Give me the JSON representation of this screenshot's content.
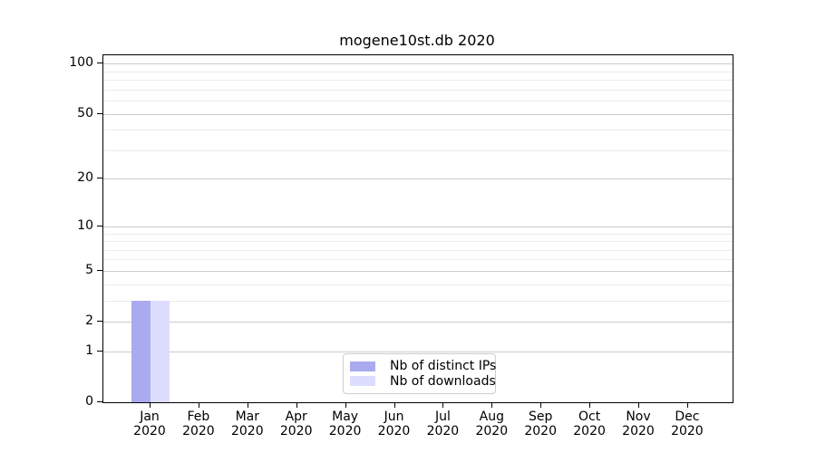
{
  "chart_data": {
    "type": "bar",
    "title": "mogene10st.db 2020",
    "x_categories": [
      "Jan",
      "Feb",
      "Mar",
      "Apr",
      "May",
      "Jun",
      "Jul",
      "Aug",
      "Sep",
      "Oct",
      "Nov",
      "Dec"
    ],
    "x_year": "2020",
    "series": [
      {
        "name": "Nb of distinct IPs",
        "color": "#aaaaee",
        "values": [
          3,
          0,
          0,
          0,
          0,
          0,
          0,
          0,
          0,
          0,
          0,
          0
        ]
      },
      {
        "name": "Nb of downloads",
        "color": "#ddddff",
        "values": [
          3,
          0,
          0,
          0,
          0,
          0,
          0,
          0,
          0,
          0,
          0,
          0
        ]
      }
    ],
    "scale": "log1p",
    "ylim": [
      0,
      112
    ],
    "y_major_ticks": [
      0,
      1,
      2,
      5,
      10,
      20,
      50,
      100
    ],
    "y_minor_gridlines": [
      3,
      4,
      6,
      7,
      8,
      9,
      30,
      40,
      60,
      70,
      80,
      90
    ],
    "grid": "horizontal",
    "legend_position": "bottom-center",
    "colors": {
      "axis": "#000000",
      "text": "#000000",
      "grid_major": "#cccccc",
      "grid_minor": "#ebebeb",
      "background": "#ffffff"
    }
  }
}
